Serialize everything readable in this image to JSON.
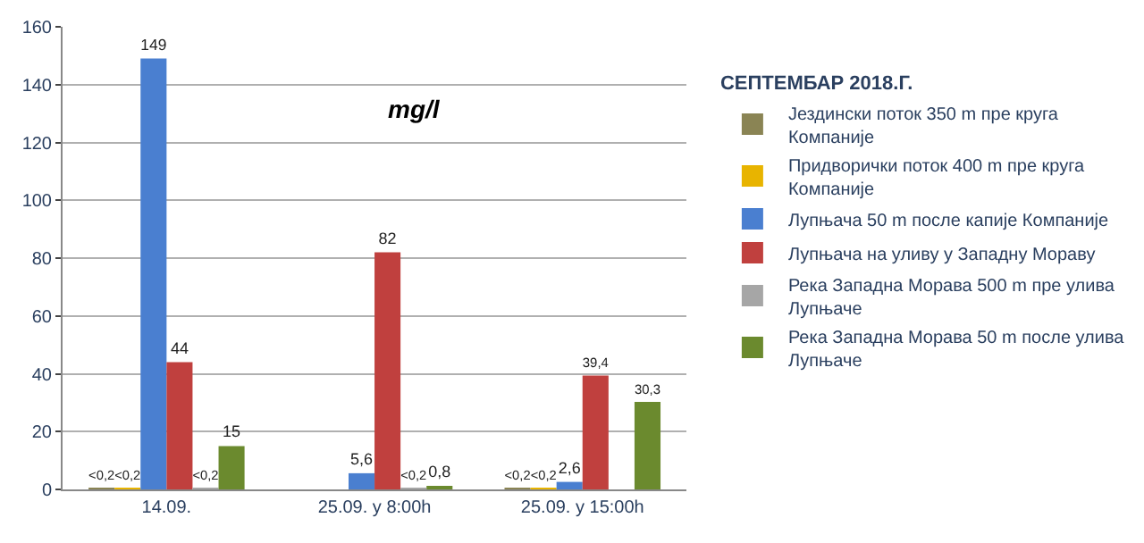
{
  "chart_data": {
    "type": "bar",
    "categories": [
      "14.09.",
      "25.09. у 8:00h",
      "25.09. у 15:00h"
    ],
    "series": [
      {
        "name": "Јездински поток 350 m пре круга Компаније",
        "color": "#8a8454",
        "values": [
          0.2,
          null,
          0.2
        ],
        "value_labels": [
          "<0,2",
          null,
          "<0,2"
        ]
      },
      {
        "name": "Придворички поток 400 m пре круга Компаније",
        "color": "#e8b400",
        "values": [
          0.2,
          null,
          0.2
        ],
        "value_labels": [
          "<0,2",
          null,
          "<0,2"
        ]
      },
      {
        "name": "Лупњача 50 m после капије Компаније",
        "color": "#4a7fd0",
        "values": [
          149,
          5.6,
          2.6
        ],
        "value_labels": [
          "149",
          "5,6",
          "2,6"
        ]
      },
      {
        "name": "Лупњача на уливу у Западну Мораву",
        "color": "#c0403e",
        "values": [
          44,
          82,
          39.4
        ],
        "value_labels": [
          "44",
          "82",
          "39,4"
        ]
      },
      {
        "name": "Река Западна Морава 500 m пре улива Лупњаче",
        "color": "#a6a6a6",
        "values": [
          0.2,
          0.2,
          null
        ],
        "value_labels": [
          "<0,2",
          "<0,2",
          null
        ]
      },
      {
        "name": "Река Западна Морава 50 m после улива Лупњаче",
        "color": "#6b8a2e",
        "values": [
          15,
          0.8,
          30.3
        ],
        "value_labels": [
          "15",
          "0,8",
          "30,3"
        ]
      }
    ],
    "legend_title": "СЕПТЕМБАР 2018.Г.",
    "annotations": [
      "mg/l"
    ],
    "ylim": [
      0,
      160
    ],
    "yticks": [
      0,
      20,
      40,
      60,
      80,
      100,
      120,
      140,
      160
    ],
    "grid": "y",
    "legend": "right"
  }
}
